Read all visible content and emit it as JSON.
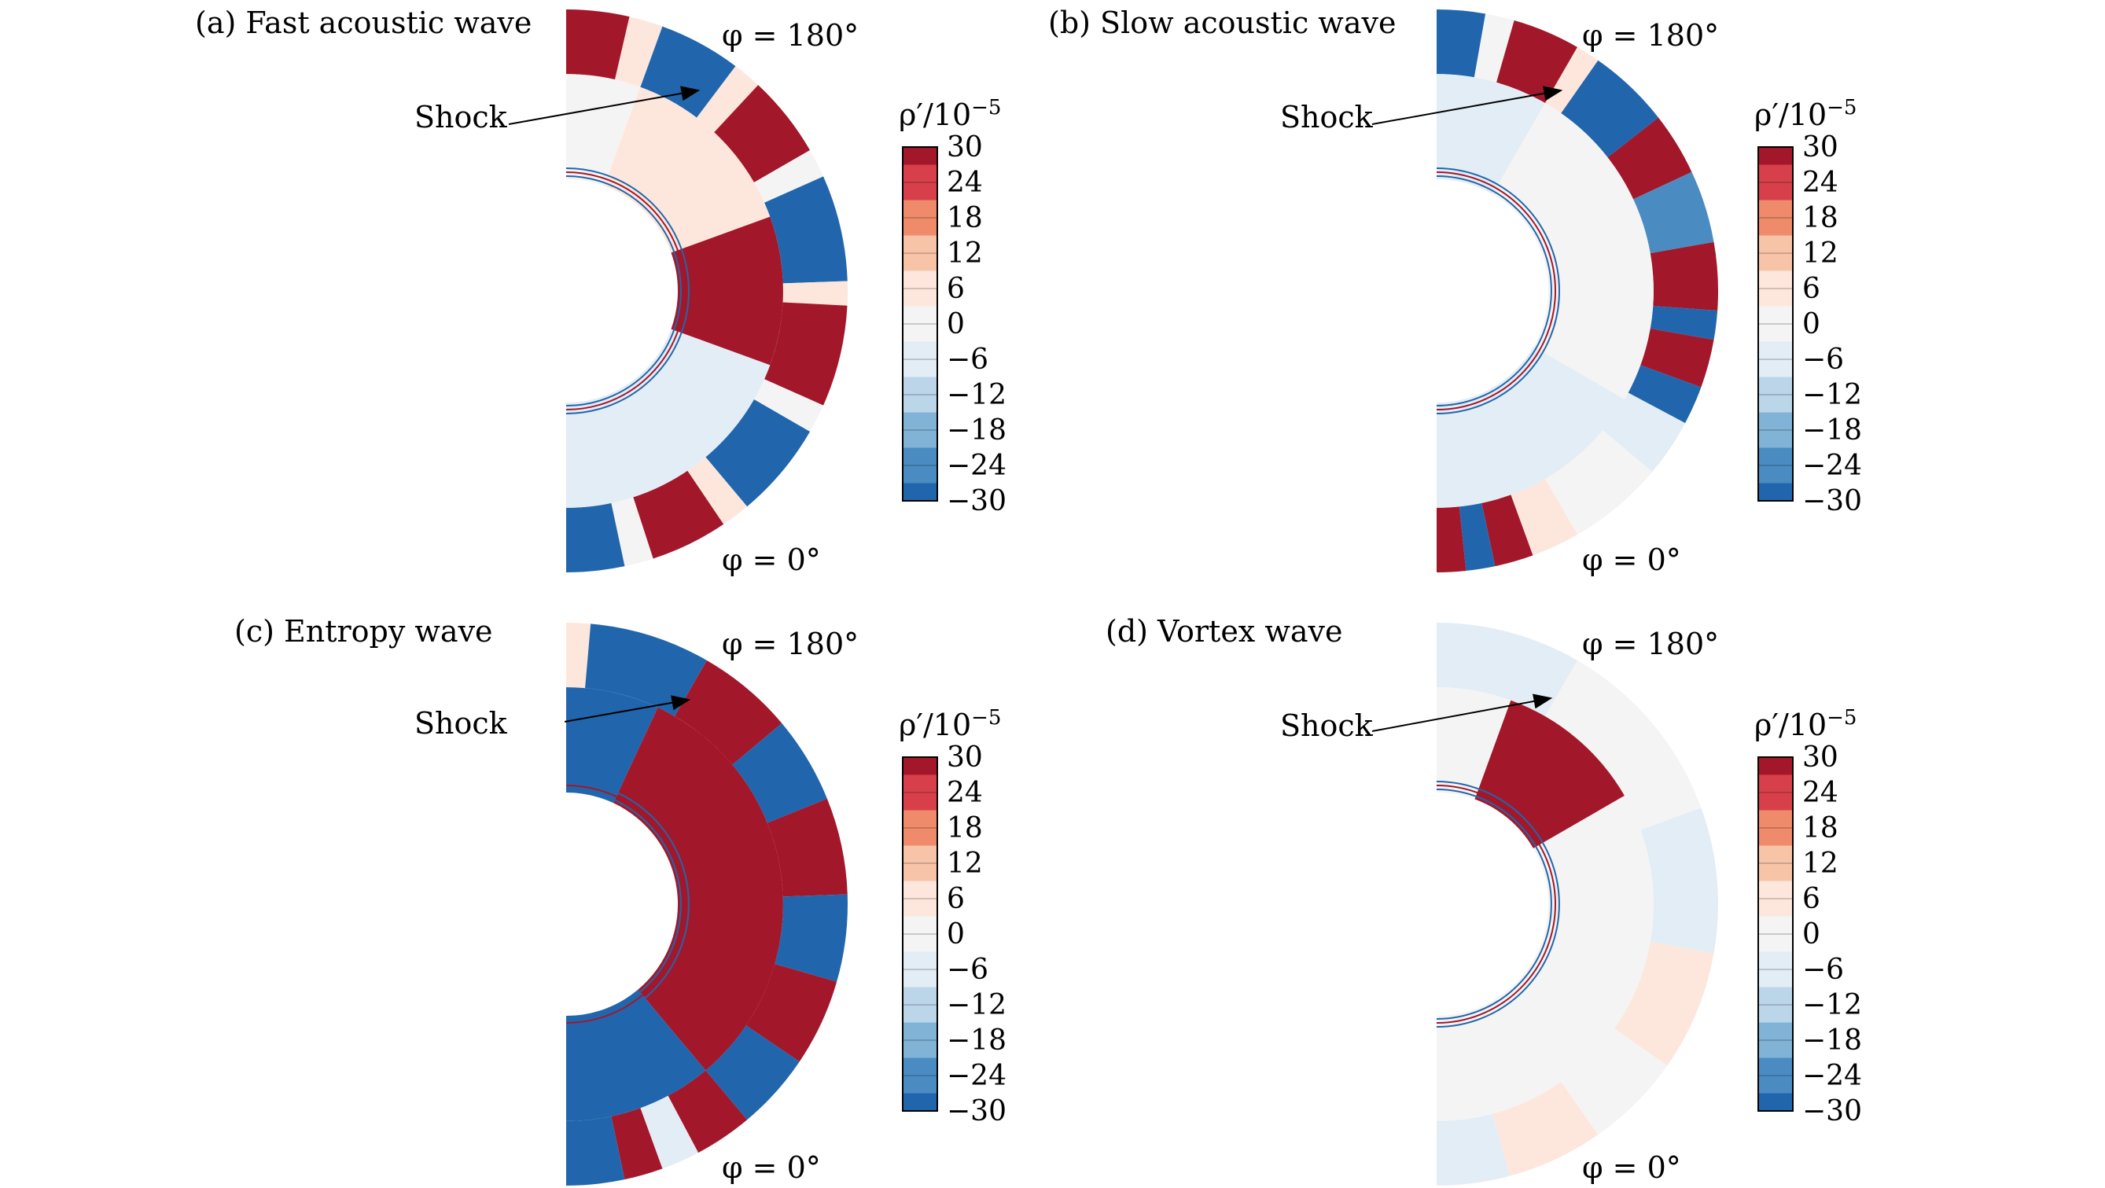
{
  "panels": [
    {
      "id": "a",
      "title": "(a) Fast acoustic wave",
      "phi_top": "φ = 180°",
      "phi_bottom": "φ = 0°",
      "shock_label": "Shock",
      "colorbar_title": "ρ′/10",
      "colorbar_exp": "−5",
      "bands": [
        {
          "t0": 180,
          "t1": 167,
          "level": 30
        },
        {
          "t0": 167,
          "t1": 160,
          "level": 6
        },
        {
          "t0": 160,
          "t1": 143,
          "level": -30
        },
        {
          "t0": 143,
          "t1": 137,
          "level": 6
        },
        {
          "t0": 137,
          "t1": 120,
          "level": 30
        },
        {
          "t0": 120,
          "t1": 114,
          "level": 0
        },
        {
          "t0": 114,
          "t1": 92,
          "level": -30
        },
        {
          "t0": 92,
          "t1": 87,
          "level": 6
        },
        {
          "t0": 87,
          "t1": 66,
          "level": 30
        },
        {
          "t0": 66,
          "t1": 60,
          "level": 0
        },
        {
          "t0": 60,
          "t1": 40,
          "level": -30
        },
        {
          "t0": 40,
          "t1": 34,
          "level": 6
        },
        {
          "t0": 34,
          "t1": 18,
          "level": 30
        },
        {
          "t0": 18,
          "t1": 12,
          "level": 0
        },
        {
          "t0": 12,
          "t1": 0,
          "level": -30
        }
      ],
      "inner": [
        {
          "t0": 180,
          "t1": 160,
          "level": 0
        },
        {
          "t0": 160,
          "t1": 110,
          "level": 6
        },
        {
          "t0": 110,
          "t1": 70,
          "level": 30
        },
        {
          "t0": 70,
          "t1": 0,
          "level": -6
        }
      ]
    },
    {
      "id": "b",
      "title": "(b) Slow acoustic wave",
      "phi_top": "φ = 180°",
      "phi_bottom": "φ = 0°",
      "shock_label": "Shock",
      "colorbar_title": "ρ′/10",
      "colorbar_exp": "−5",
      "bands": [
        {
          "t0": 180,
          "t1": 170,
          "level": -30
        },
        {
          "t0": 170,
          "t1": 164,
          "level": 0
        },
        {
          "t0": 164,
          "t1": 150,
          "level": 30
        },
        {
          "t0": 150,
          "t1": 145,
          "level": 6
        },
        {
          "t0": 145,
          "t1": 128,
          "level": -30
        },
        {
          "t0": 128,
          "t1": 115,
          "level": 30
        },
        {
          "t0": 115,
          "t1": 100,
          "level": -24
        },
        {
          "t0": 100,
          "t1": 86,
          "level": 30
        },
        {
          "t0": 86,
          "t1": 80,
          "level": -30
        },
        {
          "t0": 80,
          "t1": 70,
          "level": 30
        },
        {
          "t0": 70,
          "t1": 62,
          "level": -30
        },
        {
          "t0": 62,
          "t1": 50,
          "level": -6
        },
        {
          "t0": 50,
          "t1": 30,
          "level": 0
        },
        {
          "t0": 30,
          "t1": 20,
          "level": 6
        },
        {
          "t0": 20,
          "t1": 12,
          "level": 30
        },
        {
          "t0": 12,
          "t1": 6,
          "level": -30
        },
        {
          "t0": 6,
          "t1": 0,
          "level": 30
        }
      ],
      "inner": [
        {
          "t0": 180,
          "t1": 150,
          "level": -6
        },
        {
          "t0": 150,
          "t1": 60,
          "level": 0
        },
        {
          "t0": 60,
          "t1": 0,
          "level": -6
        }
      ]
    },
    {
      "id": "c",
      "title": "(c) Entropy wave",
      "phi_top": "φ = 180°",
      "phi_bottom": "φ = 0°",
      "shock_label": "Shock",
      "colorbar_title": "ρ′/10",
      "colorbar_exp": "−5",
      "bands": [
        {
          "t0": 180,
          "t1": 175,
          "level": 6
        },
        {
          "t0": 175,
          "t1": 150,
          "level": -30
        },
        {
          "t0": 150,
          "t1": 130,
          "level": 30
        },
        {
          "t0": 130,
          "t1": 112,
          "level": -30
        },
        {
          "t0": 112,
          "t1": 92,
          "level": 30
        },
        {
          "t0": 92,
          "t1": 74,
          "level": -30
        },
        {
          "t0": 74,
          "t1": 56,
          "level": 30
        },
        {
          "t0": 56,
          "t1": 40,
          "level": -30
        },
        {
          "t0": 40,
          "t1": 28,
          "level": 30
        },
        {
          "t0": 28,
          "t1": 20,
          "level": -6
        },
        {
          "t0": 20,
          "t1": 12,
          "level": 30
        },
        {
          "t0": 12,
          "t1": 0,
          "level": -30
        }
      ],
      "inner": [
        {
          "t0": 180,
          "t1": 155,
          "level": -30
        },
        {
          "t0": 155,
          "t1": 40,
          "level": 30
        },
        {
          "t0": 40,
          "t1": 0,
          "level": -30
        }
      ]
    },
    {
      "id": "d",
      "title": "(d) Vortex wave",
      "phi_top": "φ = 180°",
      "phi_bottom": "φ = 0°",
      "shock_label": "Shock",
      "colorbar_title": "ρ′/10",
      "colorbar_exp": "−5",
      "bands": [
        {
          "t0": 180,
          "t1": 150,
          "level": -6
        },
        {
          "t0": 150,
          "t1": 110,
          "level": 0
        },
        {
          "t0": 110,
          "t1": 80,
          "level": -6
        },
        {
          "t0": 80,
          "t1": 55,
          "level": 6
        },
        {
          "t0": 55,
          "t1": 35,
          "level": 0
        },
        {
          "t0": 35,
          "t1": 15,
          "level": 6
        },
        {
          "t0": 15,
          "t1": 0,
          "level": -6
        }
      ],
      "inner": [
        {
          "t0": 180,
          "t1": 160,
          "level": 0
        },
        {
          "t0": 160,
          "t1": 120,
          "level": 30
        },
        {
          "t0": 120,
          "t1": 0,
          "level": 0
        }
      ]
    }
  ],
  "colorbar": {
    "levels": [
      30,
      24,
      18,
      12,
      6,
      0,
      -6,
      -12,
      -18,
      -24,
      -30
    ],
    "tick_labels": [
      "30",
      "24",
      "18",
      "12",
      "6",
      "0",
      "−6",
      "−12",
      "−18",
      "−24",
      "−30"
    ],
    "colors": [
      "#a3172a",
      "#d7404a",
      "#ef8a6b",
      "#f8c4a8",
      "#fde7dc",
      "#f4f4f4",
      "#e3edf5",
      "#bcd6e9",
      "#80b3d6",
      "#4a8cc2",
      "#2166ac"
    ]
  }
}
